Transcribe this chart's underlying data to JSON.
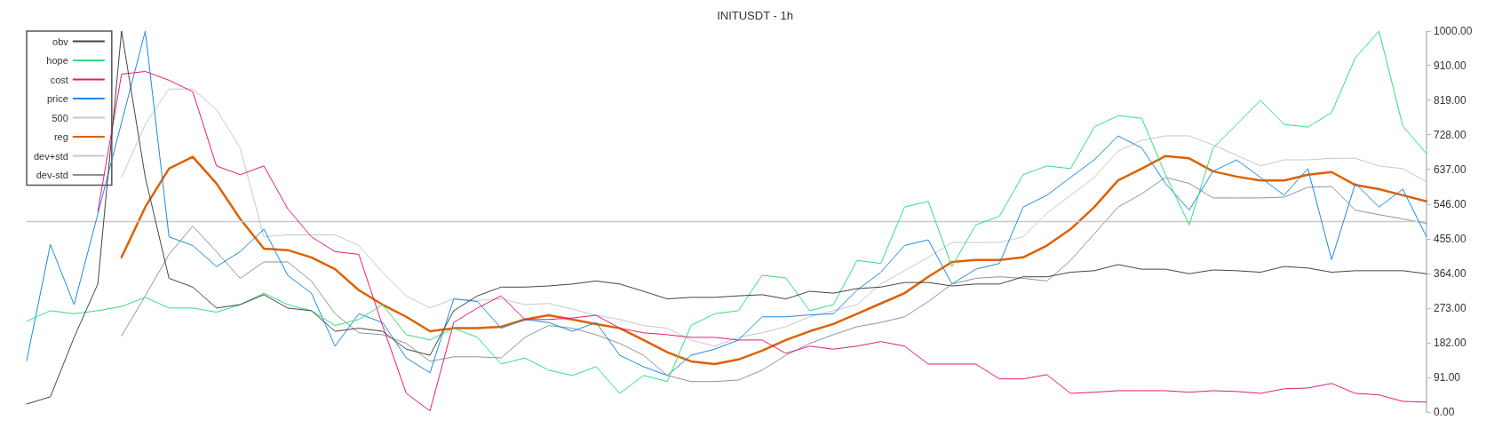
{
  "chart_data": {
    "type": "line",
    "title": "INITUSDT - 1h",
    "categories": [
      null,
      null,
      null,
      null,
      null,
      null,
      null,
      null,
      null,
      null,
      null,
      null,
      null,
      null,
      null,
      null,
      null,
      null,
      null,
      null,
      null,
      null,
      null,
      null,
      null,
      null,
      null,
      null,
      null,
      null,
      null,
      null,
      null,
      null,
      null,
      null,
      null,
      null,
      null,
      null,
      null,
      null,
      null,
      null,
      null,
      null,
      null,
      null,
      null,
      null,
      null,
      null,
      null,
      null,
      null,
      null,
      null,
      null,
      null,
      null
    ],
    "series": [
      {
        "name": "obv",
        "color": "#444444",
        "values": [
          21,
          40,
          196,
          336,
          1000,
          616,
          351,
          328,
          273,
          282,
          308,
          273,
          266,
          212,
          220,
          212,
          165,
          149,
          266,
          305,
          328,
          328,
          331,
          336,
          344,
          336,
          317,
          297,
          301,
          301,
          305,
          308,
          297,
          317,
          312,
          324,
          328,
          340,
          340,
          331,
          336,
          336,
          355,
          355,
          367,
          371,
          387,
          375,
          375,
          363,
          373,
          371,
          367,
          382,
          378,
          367,
          371,
          371,
          371,
          363
        ]
      },
      {
        "name": "hope",
        "color": "#2ee07a",
        "values": [
          238,
          266,
          258,
          266,
          277,
          301,
          273,
          273,
          262,
          282,
          312,
          282,
          266,
          227,
          243,
          282,
          203,
          189,
          220,
          196,
          126,
          142,
          110,
          96,
          119,
          49,
          96,
          80,
          227,
          258,
          266,
          359,
          352,
          266,
          282,
          398,
          390,
          538,
          553,
          382,
          491,
          514,
          623,
          646,
          639,
          748,
          778,
          771,
          623,
          491,
          693,
          755,
          818,
          755,
          748,
          786,
          930,
          1000,
          751,
          678
        ]
      },
      {
        "name": "cost",
        "color": "#e6197a",
        "values": [
          null,
          null,
          null,
          527,
          887,
          894,
          871,
          841,
          646,
          623,
          646,
          534,
          460,
          421,
          414,
          227,
          49,
          3,
          235,
          273,
          305,
          243,
          243,
          247,
          254,
          220,
          208,
          203,
          196,
          196,
          189,
          189,
          154,
          173,
          165,
          173,
          185,
          173,
          126,
          126,
          126,
          87,
          87,
          98,
          49,
          52,
          56,
          56,
          56,
          52,
          56,
          54,
          49,
          61,
          63,
          75,
          49,
          45,
          28,
          26
        ]
      },
      {
        "name": "price",
        "color": "#1e88e5",
        "values": [
          135,
          440,
          282,
          520,
          760,
          1000,
          460,
          437,
          382,
          421,
          480,
          359,
          312,
          173,
          258,
          235,
          142,
          103,
          297,
          290,
          220,
          243,
          235,
          212,
          235,
          149,
          119,
          96,
          149,
          165,
          189,
          250,
          250,
          255,
          258,
          320,
          367,
          437,
          452,
          336,
          375,
          390,
          538,
          569,
          616,
          662,
          725,
          693,
          600,
          530,
          632,
          662,
          616,
          569,
          639,
          400,
          600,
          538,
          585,
          460
        ]
      },
      {
        "name": "500",
        "color": "#c8c8c8",
        "values": [
          500,
          500,
          500,
          500,
          500,
          500,
          500,
          500,
          500,
          500,
          500,
          500,
          500,
          500,
          500,
          500,
          500,
          500,
          500,
          500,
          500,
          500,
          500,
          500,
          500,
          500,
          500,
          500,
          500,
          500,
          500,
          500,
          500,
          500,
          500,
          500,
          500,
          500,
          500,
          500,
          500,
          500,
          500,
          500,
          500,
          500,
          500,
          500,
          500,
          500,
          500,
          500,
          500,
          500,
          500,
          500,
          500,
          500,
          500,
          500
        ]
      },
      {
        "name": "reg",
        "color": "#e06000",
        "values": [
          null,
          null,
          null,
          null,
          406,
          538,
          639,
          670,
          600,
          507,
          429,
          425,
          406,
          375,
          320,
          282,
          250,
          212,
          220,
          220,
          224,
          243,
          254,
          243,
          231,
          220,
          189,
          157,
          133,
          126,
          138,
          161,
          189,
          212,
          231,
          258,
          285,
          312,
          355,
          394,
          399,
          399,
          406,
          437,
          480,
          538,
          608,
          639,
          672,
          666,
          632,
          618,
          608,
          608,
          623,
          630,
          596,
          585,
          569,
          553
        ]
      },
      {
        "name": "dev+std",
        "color": "#c3c9cf",
        "values": [
          null,
          null,
          null,
          null,
          616,
          755,
          848,
          848,
          794,
          693,
          460,
          465,
          465,
          465,
          437,
          367,
          305,
          273,
          297,
          293,
          297,
          282,
          285,
          270,
          254,
          243,
          227,
          220,
          189,
          173,
          196,
          208,
          224,
          250,
          266,
          282,
          336,
          371,
          406,
          445,
          445,
          445,
          460,
          522,
          569,
          616,
          685,
          713,
          725,
          725,
          701,
          674,
          646,
          662,
          662,
          666,
          666,
          646,
          639,
          604
        ]
      },
      {
        "name": "dev-std",
        "color": "#8a959e",
        "values": [
          null,
          null,
          null,
          null,
          200,
          305,
          414,
          488,
          421,
          351,
          394,
          394,
          344,
          258,
          208,
          203,
          180,
          133,
          145,
          145,
          142,
          196,
          227,
          220,
          203,
          180,
          149,
          96,
          80,
          80,
          84,
          110,
          149,
          180,
          203,
          224,
          235,
          250,
          290,
          336,
          351,
          355,
          351,
          344,
          398,
          468,
          538,
          573,
          616,
          600,
          562,
          562,
          562,
          564,
          590,
          592,
          530,
          518,
          507,
          495
        ]
      }
    ],
    "ylim": [
      0,
      1000
    ],
    "yticks": [
      {
        "value": 0,
        "label": "0.00"
      },
      {
        "value": 91,
        "label": "91.00"
      },
      {
        "value": 182,
        "label": "182.00"
      },
      {
        "value": 273,
        "label": "273.00"
      },
      {
        "value": 364,
        "label": "364.00"
      },
      {
        "value": 455,
        "label": "455.00"
      },
      {
        "value": 546,
        "label": "546.00"
      },
      {
        "value": 637,
        "label": "637.00"
      },
      {
        "value": 728,
        "label": "728.00"
      },
      {
        "value": 819,
        "label": "819.00"
      },
      {
        "value": 910,
        "label": "910.00"
      },
      {
        "value": 1000,
        "label": "1000.00"
      }
    ],
    "tick_labels": "y",
    "legend": "top left",
    "marker": "none",
    "line_style": "solid"
  }
}
